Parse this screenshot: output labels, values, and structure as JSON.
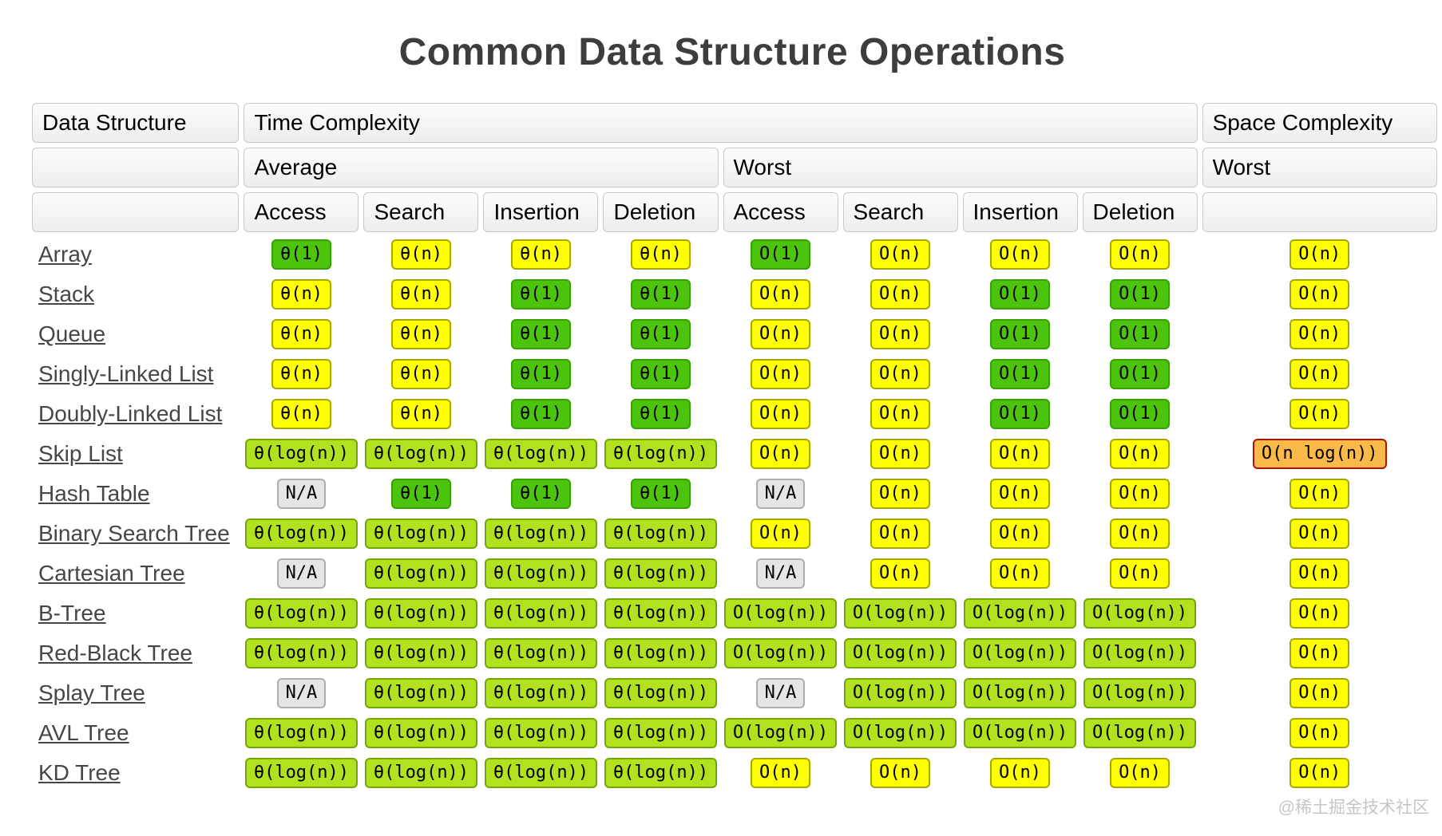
{
  "page": {
    "title": "Common Data Structure Operations",
    "watermark": "@稀土掘金技术社区"
  },
  "table": {
    "header": {
      "col_data_structure": "Data Structure",
      "col_time_complexity": "Time Complexity",
      "col_space_complexity": "Space Complexity",
      "group_average": "Average",
      "group_worst": "Worst",
      "group_space_worst": "Worst",
      "operations": [
        "Access",
        "Search",
        "Insertion",
        "Deletion"
      ]
    },
    "badge_colors": {
      "green": {
        "bg": "#4cc40e",
        "border": "#37a004"
      },
      "yellowgreen": {
        "bg": "#b2e120",
        "border": "#74a608"
      },
      "yellow": {
        "bg": "#ffff00",
        "border": "#a6a600"
      },
      "orange": {
        "bg": "#fab949",
        "border": "#ab1507"
      },
      "gray": {
        "bg": "#e5e5e5",
        "border": "#aeaeae"
      }
    },
    "rows": [
      {
        "name": "Array",
        "average": [
          {
            "text": "θ(1)",
            "level": "green"
          },
          {
            "text": "θ(n)",
            "level": "yellow"
          },
          {
            "text": "θ(n)",
            "level": "yellow"
          },
          {
            "text": "θ(n)",
            "level": "yellow"
          }
        ],
        "worst": [
          {
            "text": "O(1)",
            "level": "green"
          },
          {
            "text": "O(n)",
            "level": "yellow"
          },
          {
            "text": "O(n)",
            "level": "yellow"
          },
          {
            "text": "O(n)",
            "level": "yellow"
          }
        ],
        "space": {
          "text": "O(n)",
          "level": "yellow"
        }
      },
      {
        "name": "Stack",
        "average": [
          {
            "text": "θ(n)",
            "level": "yellow"
          },
          {
            "text": "θ(n)",
            "level": "yellow"
          },
          {
            "text": "θ(1)",
            "level": "green"
          },
          {
            "text": "θ(1)",
            "level": "green"
          }
        ],
        "worst": [
          {
            "text": "O(n)",
            "level": "yellow"
          },
          {
            "text": "O(n)",
            "level": "yellow"
          },
          {
            "text": "O(1)",
            "level": "green"
          },
          {
            "text": "O(1)",
            "level": "green"
          }
        ],
        "space": {
          "text": "O(n)",
          "level": "yellow"
        }
      },
      {
        "name": "Queue",
        "average": [
          {
            "text": "θ(n)",
            "level": "yellow"
          },
          {
            "text": "θ(n)",
            "level": "yellow"
          },
          {
            "text": "θ(1)",
            "level": "green"
          },
          {
            "text": "θ(1)",
            "level": "green"
          }
        ],
        "worst": [
          {
            "text": "O(n)",
            "level": "yellow"
          },
          {
            "text": "O(n)",
            "level": "yellow"
          },
          {
            "text": "O(1)",
            "level": "green"
          },
          {
            "text": "O(1)",
            "level": "green"
          }
        ],
        "space": {
          "text": "O(n)",
          "level": "yellow"
        }
      },
      {
        "name": "Singly-Linked List",
        "average": [
          {
            "text": "θ(n)",
            "level": "yellow"
          },
          {
            "text": "θ(n)",
            "level": "yellow"
          },
          {
            "text": "θ(1)",
            "level": "green"
          },
          {
            "text": "θ(1)",
            "level": "green"
          }
        ],
        "worst": [
          {
            "text": "O(n)",
            "level": "yellow"
          },
          {
            "text": "O(n)",
            "level": "yellow"
          },
          {
            "text": "O(1)",
            "level": "green"
          },
          {
            "text": "O(1)",
            "level": "green"
          }
        ],
        "space": {
          "text": "O(n)",
          "level": "yellow"
        }
      },
      {
        "name": "Doubly-Linked List",
        "average": [
          {
            "text": "θ(n)",
            "level": "yellow"
          },
          {
            "text": "θ(n)",
            "level": "yellow"
          },
          {
            "text": "θ(1)",
            "level": "green"
          },
          {
            "text": "θ(1)",
            "level": "green"
          }
        ],
        "worst": [
          {
            "text": "O(n)",
            "level": "yellow"
          },
          {
            "text": "O(n)",
            "level": "yellow"
          },
          {
            "text": "O(1)",
            "level": "green"
          },
          {
            "text": "O(1)",
            "level": "green"
          }
        ],
        "space": {
          "text": "O(n)",
          "level": "yellow"
        }
      },
      {
        "name": "Skip List",
        "average": [
          {
            "text": "θ(log(n))",
            "level": "yellowgreen"
          },
          {
            "text": "θ(log(n))",
            "level": "yellowgreen"
          },
          {
            "text": "θ(log(n))",
            "level": "yellowgreen"
          },
          {
            "text": "θ(log(n))",
            "level": "yellowgreen"
          }
        ],
        "worst": [
          {
            "text": "O(n)",
            "level": "yellow"
          },
          {
            "text": "O(n)",
            "level": "yellow"
          },
          {
            "text": "O(n)",
            "level": "yellow"
          },
          {
            "text": "O(n)",
            "level": "yellow"
          }
        ],
        "space": {
          "text": "O(n log(n))",
          "level": "orange"
        }
      },
      {
        "name": "Hash Table",
        "average": [
          {
            "text": "N/A",
            "level": "gray"
          },
          {
            "text": "θ(1)",
            "level": "green"
          },
          {
            "text": "θ(1)",
            "level": "green"
          },
          {
            "text": "θ(1)",
            "level": "green"
          }
        ],
        "worst": [
          {
            "text": "N/A",
            "level": "gray"
          },
          {
            "text": "O(n)",
            "level": "yellow"
          },
          {
            "text": "O(n)",
            "level": "yellow"
          },
          {
            "text": "O(n)",
            "level": "yellow"
          }
        ],
        "space": {
          "text": "O(n)",
          "level": "yellow"
        }
      },
      {
        "name": "Binary Search Tree",
        "average": [
          {
            "text": "θ(log(n))",
            "level": "yellowgreen"
          },
          {
            "text": "θ(log(n))",
            "level": "yellowgreen"
          },
          {
            "text": "θ(log(n))",
            "level": "yellowgreen"
          },
          {
            "text": "θ(log(n))",
            "level": "yellowgreen"
          }
        ],
        "worst": [
          {
            "text": "O(n)",
            "level": "yellow"
          },
          {
            "text": "O(n)",
            "level": "yellow"
          },
          {
            "text": "O(n)",
            "level": "yellow"
          },
          {
            "text": "O(n)",
            "level": "yellow"
          }
        ],
        "space": {
          "text": "O(n)",
          "level": "yellow"
        }
      },
      {
        "name": "Cartesian Tree",
        "average": [
          {
            "text": "N/A",
            "level": "gray"
          },
          {
            "text": "θ(log(n))",
            "level": "yellowgreen"
          },
          {
            "text": "θ(log(n))",
            "level": "yellowgreen"
          },
          {
            "text": "θ(log(n))",
            "level": "yellowgreen"
          }
        ],
        "worst": [
          {
            "text": "N/A",
            "level": "gray"
          },
          {
            "text": "O(n)",
            "level": "yellow"
          },
          {
            "text": "O(n)",
            "level": "yellow"
          },
          {
            "text": "O(n)",
            "level": "yellow"
          }
        ],
        "space": {
          "text": "O(n)",
          "level": "yellow"
        }
      },
      {
        "name": "B-Tree",
        "average": [
          {
            "text": "θ(log(n))",
            "level": "yellowgreen"
          },
          {
            "text": "θ(log(n))",
            "level": "yellowgreen"
          },
          {
            "text": "θ(log(n))",
            "level": "yellowgreen"
          },
          {
            "text": "θ(log(n))",
            "level": "yellowgreen"
          }
        ],
        "worst": [
          {
            "text": "O(log(n))",
            "level": "yellowgreen"
          },
          {
            "text": "O(log(n))",
            "level": "yellowgreen"
          },
          {
            "text": "O(log(n))",
            "level": "yellowgreen"
          },
          {
            "text": "O(log(n))",
            "level": "yellowgreen"
          }
        ],
        "space": {
          "text": "O(n)",
          "level": "yellow"
        }
      },
      {
        "name": "Red-Black Tree",
        "average": [
          {
            "text": "θ(log(n))",
            "level": "yellowgreen"
          },
          {
            "text": "θ(log(n))",
            "level": "yellowgreen"
          },
          {
            "text": "θ(log(n))",
            "level": "yellowgreen"
          },
          {
            "text": "θ(log(n))",
            "level": "yellowgreen"
          }
        ],
        "worst": [
          {
            "text": "O(log(n))",
            "level": "yellowgreen"
          },
          {
            "text": "O(log(n))",
            "level": "yellowgreen"
          },
          {
            "text": "O(log(n))",
            "level": "yellowgreen"
          },
          {
            "text": "O(log(n))",
            "level": "yellowgreen"
          }
        ],
        "space": {
          "text": "O(n)",
          "level": "yellow"
        }
      },
      {
        "name": "Splay Tree",
        "average": [
          {
            "text": "N/A",
            "level": "gray"
          },
          {
            "text": "θ(log(n))",
            "level": "yellowgreen"
          },
          {
            "text": "θ(log(n))",
            "level": "yellowgreen"
          },
          {
            "text": "θ(log(n))",
            "level": "yellowgreen"
          }
        ],
        "worst": [
          {
            "text": "N/A",
            "level": "gray"
          },
          {
            "text": "O(log(n))",
            "level": "yellowgreen"
          },
          {
            "text": "O(log(n))",
            "level": "yellowgreen"
          },
          {
            "text": "O(log(n))",
            "level": "yellowgreen"
          }
        ],
        "space": {
          "text": "O(n)",
          "level": "yellow"
        }
      },
      {
        "name": "AVL Tree",
        "average": [
          {
            "text": "θ(log(n))",
            "level": "yellowgreen"
          },
          {
            "text": "θ(log(n))",
            "level": "yellowgreen"
          },
          {
            "text": "θ(log(n))",
            "level": "yellowgreen"
          },
          {
            "text": "θ(log(n))",
            "level": "yellowgreen"
          }
        ],
        "worst": [
          {
            "text": "O(log(n))",
            "level": "yellowgreen"
          },
          {
            "text": "O(log(n))",
            "level": "yellowgreen"
          },
          {
            "text": "O(log(n))",
            "level": "yellowgreen"
          },
          {
            "text": "O(log(n))",
            "level": "yellowgreen"
          }
        ],
        "space": {
          "text": "O(n)",
          "level": "yellow"
        }
      },
      {
        "name": "KD Tree",
        "average": [
          {
            "text": "θ(log(n))",
            "level": "yellowgreen"
          },
          {
            "text": "θ(log(n))",
            "level": "yellowgreen"
          },
          {
            "text": "θ(log(n))",
            "level": "yellowgreen"
          },
          {
            "text": "θ(log(n))",
            "level": "yellowgreen"
          }
        ],
        "worst": [
          {
            "text": "O(n)",
            "level": "yellow"
          },
          {
            "text": "O(n)",
            "level": "yellow"
          },
          {
            "text": "O(n)",
            "level": "yellow"
          },
          {
            "text": "O(n)",
            "level": "yellow"
          }
        ],
        "space": {
          "text": "O(n)",
          "level": "yellow"
        }
      }
    ]
  }
}
